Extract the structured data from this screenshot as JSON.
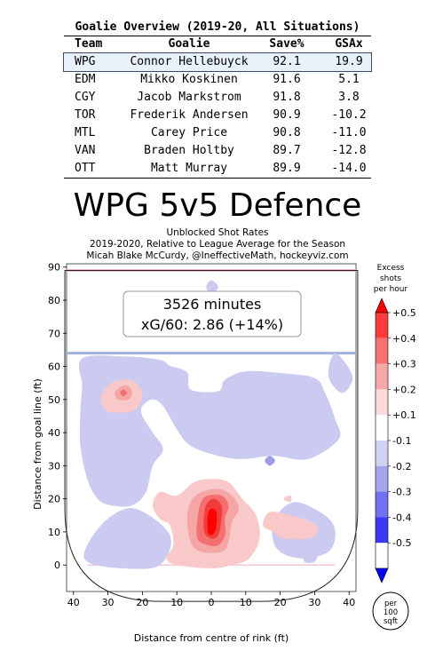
{
  "goalie_table": {
    "title": "Goalie Overview (2019-20, All Situations)",
    "headers": [
      "Team",
      "Goalie",
      "Save%",
      "GSAx"
    ],
    "highlight_row": 0,
    "rows": [
      [
        "WPG",
        "Connor Hellebuyck",
        "92.1",
        "19.9"
      ],
      [
        "EDM",
        "Mikko Koskinen",
        "91.6",
        "5.1"
      ],
      [
        "CGY",
        "Jacob Markstrom",
        "91.8",
        "3.8"
      ],
      [
        "TOR",
        "Frederik Andersen",
        "90.9",
        "-10.2"
      ],
      [
        "MTL",
        "Carey Price",
        "90.8",
        "-11.0"
      ],
      [
        "VAN",
        "Braden Holtby",
        "89.7",
        "-12.8"
      ],
      [
        "OTT",
        "Matt Murray",
        "89.9",
        "-14.0"
      ]
    ]
  },
  "chart_data": {
    "type": "heatmap",
    "title": "WPG 5v5 Defence",
    "subtitle_lines": [
      "Unblocked Shot Rates",
      "2019-2020, Relative to League Average for the Season",
      "Micah Blake McCurdy, @IneffectiveMath, hockeyviz.com"
    ],
    "summary": {
      "minutes": "3526 minutes",
      "xg": "xG/60: 2.86 (+14%)"
    },
    "xlabel": "Distance from centre of rink (ft)",
    "ylabel": "Distance from goal line (ft)",
    "xlim": [
      42,
      -42
    ],
    "ylim": [
      -8,
      91
    ],
    "xticks": [
      "40",
      "30",
      "20",
      "10",
      "0",
      "10",
      "20",
      "30",
      "40"
    ],
    "yticks": [
      "0",
      "10",
      "20",
      "30",
      "40",
      "50",
      "60",
      "70",
      "80",
      "90"
    ],
    "colorbar": {
      "title": [
        "Excess",
        "shots",
        "per hour"
      ],
      "labels": [
        "+0.5",
        "+0.4",
        "+0.3",
        "+0.2",
        "+0.1",
        "-0.1",
        "-0.2",
        "-0.3",
        "-0.4",
        "-0.5"
      ],
      "colors": [
        "#ff0000",
        "#ff3b3b",
        "#f57272",
        "#f7a8a8",
        "#fbdada",
        "#ffffff",
        "#d2d2f4",
        "#a4a4ee",
        "#7272f0",
        "#3a3af6",
        "#0000ff"
      ]
    },
    "unit_badge": [
      "per",
      "100",
      "sqft"
    ],
    "contours": [
      {
        "level": "-0.1",
        "color": "#cbcbf1",
        "path": [
          [
            37.5,
            62.4
          ],
          [
            25,
            63
          ],
          [
            15,
            62
          ],
          [
            12,
            60.2
          ],
          [
            7,
            58.2
          ],
          [
            6,
            53
          ],
          [
            -2,
            52.5
          ],
          [
            -4,
            56
          ],
          [
            -10,
            58.5
          ],
          [
            -20,
            58
          ],
          [
            -30,
            56.5
          ],
          [
            -33,
            52
          ],
          [
            -36,
            44
          ],
          [
            -37,
            38
          ],
          [
            -28,
            32
          ],
          [
            -18,
            33
          ],
          [
            -9,
            32
          ],
          [
            -2,
            33
          ],
          [
            6,
            36
          ],
          [
            10,
            41
          ],
          [
            14,
            48
          ],
          [
            17,
            50
          ],
          [
            20,
            48
          ],
          [
            20,
            45
          ],
          [
            17,
            40
          ],
          [
            14,
            35
          ],
          [
            17,
            30
          ],
          [
            19,
            22
          ],
          [
            23,
            18
          ],
          [
            29,
            18
          ],
          [
            33,
            20
          ],
          [
            36,
            26
          ],
          [
            38,
            36
          ],
          [
            38,
            46
          ],
          [
            37.5,
            54
          ]
        ]
      },
      {
        "level": "-0.1",
        "color": "#cbcbf1",
        "path": [
          [
            -18,
            13
          ],
          [
            -24,
            19
          ],
          [
            -33,
            15
          ],
          [
            -36,
            10
          ],
          [
            -34,
            4
          ],
          [
            -26,
            2
          ],
          [
            -19,
            5
          ]
        ]
      },
      {
        "level": "-0.1",
        "color": "#cbcbf1",
        "path": [
          [
            12,
            9
          ],
          [
            22,
            17
          ],
          [
            30,
            14
          ],
          [
            36,
            6
          ],
          [
            36,
            1
          ],
          [
            26,
            -1
          ],
          [
            15,
            0
          ]
        ]
      },
      {
        "level": "-0.1",
        "color": "#cbcbf1",
        "path": [
          [
            -36,
            64
          ],
          [
            -41,
            57
          ],
          [
            -38,
            52
          ],
          [
            -34,
            57
          ]
        ]
      },
      {
        "level": "-0.1",
        "color": "#cbcbf1",
        "path": [
          [
            -27,
            4
          ],
          [
            -29,
            6
          ],
          [
            -31,
            4
          ],
          [
            -30,
            1
          ],
          [
            -27,
            1
          ]
        ]
      },
      {
        "level": "-0.1",
        "color": "#cbcbf1",
        "path": [
          [
            0,
            86
          ],
          [
            1.5,
            84
          ],
          [
            0,
            82
          ],
          [
            -2,
            84
          ]
        ]
      },
      {
        "level": "+0.1",
        "color": "#f9c9c9",
        "path": [
          [
            -15,
            12
          ],
          [
            -17,
            16
          ],
          [
            -23,
            15
          ],
          [
            -29,
            13
          ],
          [
            -31,
            10
          ],
          [
            -28,
            8
          ],
          [
            -21,
            8
          ],
          [
            -18,
            10
          ]
        ]
      },
      {
        "level": "+0.1",
        "color": "#f9c9c9",
        "path": [
          [
            -11,
            2
          ],
          [
            -14,
            8
          ],
          [
            -13,
            15
          ],
          [
            -9,
            20
          ],
          [
            -5,
            25
          ],
          [
            0,
            26
          ],
          [
            5,
            25
          ],
          [
            10,
            21
          ],
          [
            15,
            22
          ],
          [
            17,
            18
          ],
          [
            15,
            14
          ],
          [
            12,
            12
          ],
          [
            11,
            6
          ],
          [
            13,
            2
          ],
          [
            10,
            0
          ],
          [
            0,
            -1
          ],
          [
            -6,
            0
          ]
        ]
      },
      {
        "level": "+0.1",
        "color": "#f9c9c9",
        "path": [
          [
            21,
            54
          ],
          [
            20,
            51
          ],
          [
            22,
            47
          ],
          [
            27,
            46
          ],
          [
            31,
            47
          ],
          [
            32,
            51
          ],
          [
            29,
            55
          ],
          [
            24,
            56
          ]
        ]
      },
      {
        "level": "+0.1",
        "color": "#f9c9c9",
        "path": [
          [
            -21,
            20
          ],
          [
            -23,
            21
          ],
          [
            -23,
            19
          ]
        ]
      },
      {
        "level": "+0.2",
        "color": "#f6a5a5",
        "path": [
          [
            -6,
            13
          ],
          [
            -8,
            17
          ],
          [
            -6,
            21
          ],
          [
            -2,
            23
          ],
          [
            3,
            22
          ],
          [
            6,
            19
          ],
          [
            7,
            14
          ],
          [
            6,
            7
          ],
          [
            3,
            4
          ],
          [
            -3,
            4
          ],
          [
            -5,
            7
          ]
        ]
      },
      {
        "level": "+0.2",
        "color": "#f6a5a5",
        "path": [
          [
            23,
            52
          ],
          [
            24,
            50
          ],
          [
            27,
            50
          ],
          [
            28,
            52
          ],
          [
            26,
            54
          ],
          [
            24,
            54
          ]
        ]
      },
      {
        "level": "+0.3",
        "color": "#f47070",
        "path": [
          [
            -4,
            14
          ],
          [
            -5,
            18
          ],
          [
            -3,
            21
          ],
          [
            1,
            21
          ],
          [
            3,
            19
          ],
          [
            4,
            14
          ],
          [
            4,
            8
          ],
          [
            1,
            6
          ],
          [
            -2,
            6
          ],
          [
            -4,
            9
          ]
        ]
      },
      {
        "level": "+0.3",
        "color": "#f47070",
        "path": [
          [
            24.5,
            52
          ],
          [
            25.5,
            51
          ],
          [
            26.5,
            52
          ],
          [
            25.5,
            53
          ]
        ]
      },
      {
        "level": "+0.4",
        "color": "#f23b3b",
        "path": [
          [
            -3,
            14
          ],
          [
            -3,
            18
          ],
          [
            -1,
            20
          ],
          [
            1,
            19
          ],
          [
            2,
            16
          ],
          [
            2,
            10
          ],
          [
            0,
            8
          ],
          [
            -2,
            9
          ]
        ]
      },
      {
        "level": "+0.5",
        "color": "#ff0000",
        "path": [
          [
            -1.5,
            12
          ],
          [
            -1.5,
            16
          ],
          [
            0,
            17
          ],
          [
            1,
            15
          ],
          [
            1,
            10
          ],
          [
            0,
            9
          ],
          [
            -1,
            10
          ]
        ]
      },
      {
        "level": "-0.2",
        "color": "#9c9cea",
        "path": [
          [
            -17,
            30
          ],
          [
            -18.5,
            31.5
          ],
          [
            -17,
            33
          ],
          [
            -15.5,
            31.5
          ]
        ]
      }
    ]
  }
}
